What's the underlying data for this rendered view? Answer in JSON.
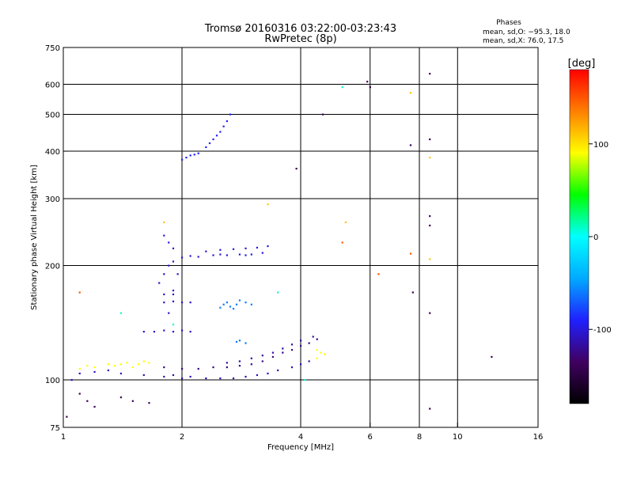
{
  "chart_data": {
    "type": "scatter",
    "title": "Tromsø 20160316 03:22:00-03:23:43",
    "subtitle": "RwPretec (8p)",
    "xlabel": "Frequency [MHz]",
    "ylabel": "Stationary phase Virtual Height [km]",
    "x_scale": "log2",
    "y_scale": "log",
    "xlim": [
      1,
      16
    ],
    "ylim": [
      75,
      750
    ],
    "x_ticks": [
      1,
      2,
      4,
      6,
      8,
      10,
      16
    ],
    "y_ticks": [
      75,
      100,
      200,
      300,
      400,
      500,
      600,
      750
    ],
    "x_gridlines": [
      2,
      4,
      6,
      8,
      10
    ],
    "y_gridlines": [
      100,
      200,
      300,
      400,
      500,
      600
    ],
    "grid": true,
    "phase_box": {
      "title": "Phases",
      "line1": "mean, sd,O: −95.3, 18.0",
      "line2": "mean, sd,X:  76.0, 17.5"
    },
    "colorbar": {
      "label": "[deg]",
      "ticks": [
        100,
        0,
        -100
      ],
      "range": [
        -180,
        180
      ],
      "colors": [
        "#000000",
        "#400060",
        "#2020ff",
        "#00aaff",
        "#00ffff",
        "#00ff00",
        "#ffff00",
        "#ff8000",
        "#ff0000"
      ]
    },
    "series": [
      {
        "phase": -110,
        "points": [
          [
            1.05,
            100
          ],
          [
            1.1,
            104
          ],
          [
            1.2,
            105
          ],
          [
            1.3,
            106
          ],
          [
            1.4,
            104
          ],
          [
            1.6,
            103
          ],
          [
            1.8,
            102
          ],
          [
            1.9,
            103
          ],
          [
            2.0,
            101
          ],
          [
            2.1,
            102
          ],
          [
            2.3,
            101
          ],
          [
            2.5,
            101
          ],
          [
            2.7,
            101
          ],
          [
            2.9,
            102
          ],
          [
            3.1,
            103
          ],
          [
            3.3,
            104
          ],
          [
            3.5,
            106
          ],
          [
            3.8,
            108
          ],
          [
            4.0,
            110
          ],
          [
            4.2,
            112
          ]
        ]
      },
      {
        "phase": -125,
        "points": [
          [
            1.8,
            108
          ],
          [
            2.0,
            107
          ],
          [
            2.2,
            107
          ],
          [
            2.4,
            108
          ],
          [
            2.6,
            108
          ],
          [
            2.8,
            109
          ],
          [
            3.0,
            110
          ],
          [
            3.2,
            112
          ],
          [
            3.4,
            115
          ],
          [
            3.6,
            118
          ],
          [
            3.8,
            120
          ],
          [
            4.0,
            123
          ],
          [
            4.2,
            125
          ],
          [
            4.4,
            128
          ]
        ]
      },
      {
        "phase": -115,
        "points": [
          [
            2.6,
            111
          ],
          [
            2.8,
            112
          ],
          [
            3.0,
            114
          ],
          [
            3.2,
            116
          ],
          [
            3.4,
            118
          ],
          [
            3.6,
            121
          ],
          [
            3.8,
            124
          ],
          [
            4.0,
            127
          ],
          [
            4.3,
            130
          ]
        ]
      },
      {
        "phase": -105,
        "points": [
          [
            1.6,
            134
          ],
          [
            1.7,
            134
          ],
          [
            1.8,
            135
          ],
          [
            1.9,
            134
          ],
          [
            2.0,
            135
          ],
          [
            2.1,
            134
          ],
          [
            1.8,
            160
          ],
          [
            1.9,
            161
          ],
          [
            2.0,
            160
          ],
          [
            2.1,
            160
          ],
          [
            1.8,
            168
          ],
          [
            1.9,
            168
          ],
          [
            1.75,
            180
          ],
          [
            1.8,
            190
          ],
          [
            1.85,
            200
          ],
          [
            1.9,
            205
          ],
          [
            1.95,
            190
          ],
          [
            1.9,
            172
          ],
          [
            1.85,
            150
          ]
        ]
      },
      {
        "phase": -100,
        "points": [
          [
            2.0,
            210
          ],
          [
            2.1,
            212
          ],
          [
            2.2,
            211
          ],
          [
            2.4,
            213
          ],
          [
            2.5,
            214
          ],
          [
            2.6,
            213
          ],
          [
            2.8,
            214
          ],
          [
            2.9,
            213
          ],
          [
            3.0,
            214
          ],
          [
            3.2,
            216
          ],
          [
            1.8,
            240
          ],
          [
            1.85,
            230
          ],
          [
            1.9,
            222
          ],
          [
            2.3,
            218
          ],
          [
            2.5,
            220
          ],
          [
            2.7,
            221
          ],
          [
            2.9,
            222
          ],
          [
            3.1,
            223
          ],
          [
            3.3,
            225
          ]
        ]
      },
      {
        "phase": -90,
        "points": [
          [
            2.0,
            380
          ],
          [
            2.05,
            385
          ],
          [
            2.1,
            390
          ],
          [
            2.15,
            392
          ],
          [
            2.2,
            395
          ],
          [
            2.3,
            410
          ],
          [
            2.35,
            420
          ],
          [
            2.4,
            430
          ],
          [
            2.45,
            440
          ],
          [
            2.5,
            450
          ],
          [
            2.55,
            465
          ],
          [
            2.6,
            480
          ],
          [
            2.65,
            500
          ]
        ]
      },
      {
        "phase": -60,
        "points": [
          [
            2.5,
            155
          ],
          [
            2.55,
            158
          ],
          [
            2.6,
            160
          ],
          [
            2.65,
            156
          ],
          [
            2.7,
            154
          ],
          [
            2.75,
            158
          ],
          [
            2.8,
            162
          ],
          [
            2.9,
            160
          ],
          [
            3.0,
            158
          ],
          [
            2.75,
            126
          ],
          [
            2.8,
            127
          ],
          [
            2.9,
            125
          ]
        ]
      },
      {
        "phase": 90,
        "points": [
          [
            1.1,
            107
          ],
          [
            1.15,
            109
          ],
          [
            1.2,
            108
          ],
          [
            1.3,
            110
          ],
          [
            1.35,
            109
          ],
          [
            1.4,
            110
          ],
          [
            1.45,
            111
          ],
          [
            1.5,
            108
          ],
          [
            1.55,
            110
          ],
          [
            1.6,
            112
          ],
          [
            1.65,
            111
          ],
          [
            4.4,
            120
          ],
          [
            4.5,
            118
          ],
          [
            4.6,
            117
          ],
          [
            4.4,
            114
          ]
        ]
      },
      {
        "phase": -140,
        "points": [
          [
            1.02,
            80
          ],
          [
            1.1,
            92
          ],
          [
            1.15,
            88
          ],
          [
            1.2,
            85
          ],
          [
            1.4,
            90
          ],
          [
            1.5,
            88
          ],
          [
            1.65,
            87
          ],
          [
            4.55,
            500
          ],
          [
            5.9,
            610
          ],
          [
            6.0,
            590
          ],
          [
            7.6,
            415
          ],
          [
            7.7,
            170
          ],
          [
            8.5,
            640
          ],
          [
            8.5,
            430
          ],
          [
            8.5,
            270
          ],
          [
            8.5,
            255
          ],
          [
            8.5,
            150
          ],
          [
            8.5,
            84
          ],
          [
            12.2,
            115
          ],
          [
            3.9,
            360
          ]
        ]
      },
      {
        "phase": 150,
        "points": [
          [
            1.1,
            170
          ],
          [
            5.1,
            230
          ],
          [
            6.3,
            190
          ],
          [
            7.6,
            215
          ]
        ]
      },
      {
        "phase": 110,
        "points": [
          [
            3.3,
            290
          ],
          [
            5.2,
            260
          ],
          [
            7.6,
            570
          ],
          [
            8.5,
            385
          ],
          [
            8.5,
            208
          ],
          [
            1.8,
            260
          ]
        ]
      },
      {
        "phase": 10,
        "points": [
          [
            1.4,
            150
          ],
          [
            1.9,
            140
          ],
          [
            3.5,
            170
          ],
          [
            4.1,
            100
          ],
          [
            5.1,
            590
          ]
        ]
      }
    ]
  }
}
